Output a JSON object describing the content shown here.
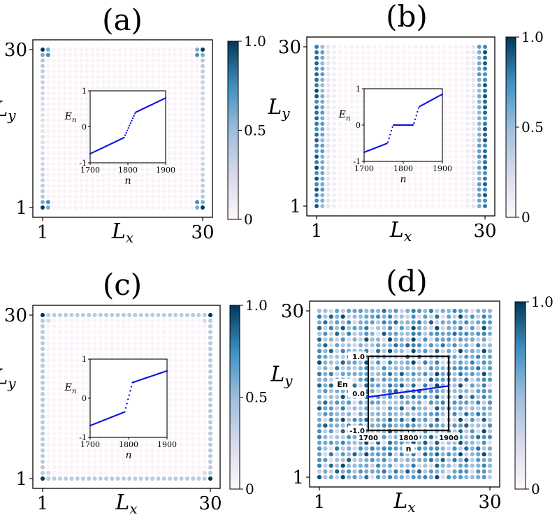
{
  "chart_data": [
    {
      "type": "heatmap",
      "title": "(a)",
      "xlabel": "L_x",
      "ylabel": "L_y",
      "x_ticks": [
        "1",
        "30"
      ],
      "y_ticks": [
        "1",
        "30"
      ],
      "grid_size": 30,
      "pattern": "corners",
      "colorbar": {
        "ticks": [
          "0",
          "0.5",
          "1.0"
        ],
        "range": [
          0,
          1
        ]
      },
      "inset": {
        "type": "scatter",
        "xlabel": "n",
        "ylabel": "E_n",
        "xlim": [
          1700,
          1900
        ],
        "ylim": [
          -1,
          1
        ],
        "x_ticks": [
          "1700",
          "1800",
          "1900"
        ],
        "y_ticks": [
          "-1",
          "0",
          "1"
        ],
        "curve": "step_up"
      }
    },
    {
      "type": "heatmap",
      "title": "(b)",
      "xlabel": "L_x",
      "ylabel": "L_y",
      "x_ticks": [
        "1",
        "30"
      ],
      "y_ticks": [
        "1",
        "30"
      ],
      "grid_size": 30,
      "pattern": "edges_x",
      "colorbar": {
        "ticks": [
          "0",
          "0.5",
          "1.0"
        ],
        "range": [
          0,
          1
        ]
      },
      "inset": {
        "type": "scatter",
        "xlabel": "n",
        "ylabel": "E_n",
        "xlim": [
          1700,
          1900
        ],
        "ylim": [
          -1,
          1
        ],
        "x_ticks": [
          "1700",
          "1800",
          "1900"
        ],
        "y_ticks": [
          "-1",
          "0",
          "1"
        ],
        "curve": "plateau"
      }
    },
    {
      "type": "heatmap",
      "title": "(c)",
      "xlabel": "L_x",
      "ylabel": "L_y",
      "x_ticks": [
        "1",
        "30"
      ],
      "y_ticks": [
        "1",
        "30"
      ],
      "grid_size": 30,
      "pattern": "perimeter",
      "colorbar": {
        "ticks": [
          "0",
          "0.5",
          "1.0"
        ],
        "range": [
          0,
          1
        ]
      },
      "inset": {
        "type": "scatter",
        "xlabel": "n",
        "ylabel": "E_n",
        "xlim": [
          1700,
          1900
        ],
        "ylim": [
          -1,
          1
        ],
        "x_ticks": [
          "1700",
          "1800",
          "1900"
        ],
        "y_ticks": [
          "-1",
          "0",
          "1"
        ],
        "curve": "step_up_flat"
      }
    },
    {
      "type": "heatmap",
      "title": "(d)",
      "xlabel": "L_x",
      "ylabel": "L_y",
      "x_ticks": [
        "1",
        "30"
      ],
      "y_ticks": [
        "1",
        "30"
      ],
      "grid_size": 30,
      "pattern": "bulk",
      "colorbar": {
        "ticks": [
          "0",
          "1.0"
        ],
        "range": [
          0,
          1
        ]
      },
      "inset": {
        "type": "scatter",
        "xlabel": "n",
        "ylabel": "En",
        "xlim": [
          1700,
          1900
        ],
        "ylim": [
          -1,
          1
        ],
        "x_ticks": [
          "1700",
          "1800",
          "1900"
        ],
        "y_ticks": [
          "-1.0",
          "0.0",
          "1.0"
        ],
        "curve": "linear_small"
      }
    }
  ]
}
